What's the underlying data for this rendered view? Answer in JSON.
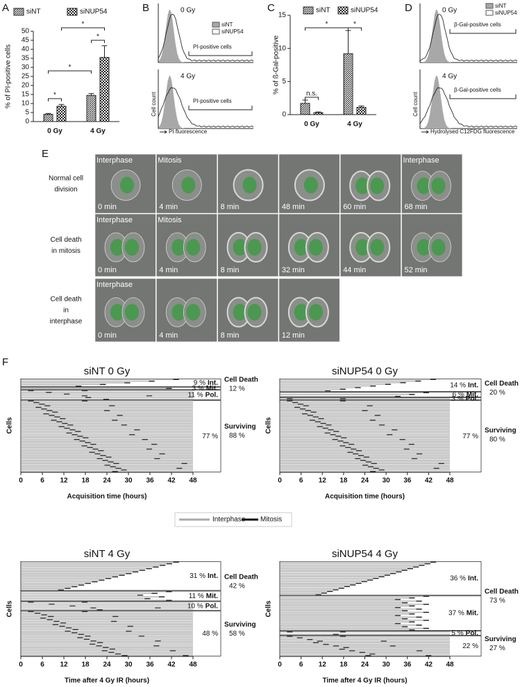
{
  "panel_labels": [
    "A",
    "B",
    "C",
    "D",
    "E",
    "F"
  ],
  "chart_data": [
    {
      "type": "bar",
      "ylabel": "% of PI-positive cells",
      "categories": [
        "0 Gy",
        "4 Gy"
      ],
      "series": [
        {
          "name": "siNT",
          "values": [
            4,
            14.5
          ],
          "errors": [
            0.5,
            1
          ]
        },
        {
          "name": "siNUP54",
          "values": [
            8.5,
            35.5
          ],
          "errors": [
            1,
            6.5
          ]
        }
      ],
      "ylim": [
        0,
        50
      ],
      "yticks": [
        0,
        5,
        10,
        15,
        20,
        25,
        30,
        35,
        40,
        45,
        50
      ],
      "annotations": [
        "*",
        "*",
        "*",
        "*"
      ]
    },
    {
      "type": "bar",
      "ylabel": "% of ß-Gal-positive",
      "categories": [
        "0 Gy",
        "4 Gy"
      ],
      "series": [
        {
          "name": "siNT",
          "values": [
            1.7,
            9.2
          ],
          "errors": [
            0.5,
            3.5
          ]
        },
        {
          "name": "siNUP54",
          "values": [
            0.3,
            1.1
          ],
          "errors": [
            0.1,
            0.2
          ]
        }
      ],
      "ylim": [
        0,
        15
      ],
      "yticks": [
        0,
        5,
        10,
        15
      ],
      "annotations": [
        "n.s.",
        "*",
        "*"
      ]
    }
  ],
  "panel_b": {
    "top_label": "0 Gy",
    "legend": [
      "siNT",
      "siNUP54"
    ],
    "gate_top": "PI-positive cells",
    "bottom_label": "4 Gy",
    "gate_bottom": "PI-positive cells",
    "ylabel": "Cell count",
    "xlabel": "PI fluorescence"
  },
  "panel_d": {
    "top_label": "0 Gy",
    "legend": [
      "siNT",
      "siNUP54"
    ],
    "gate_top": "β-Gal-positive cells",
    "bottom_label": "4 Gy",
    "gate_bottom": "β-Gal-positive cells",
    "ylabel": "Cell count",
    "xlabel": "Hydrolysed C12FDG fluorescence"
  },
  "panel_e": {
    "rows": [
      {
        "label": "Normal cell division",
        "frames": [
          {
            "phase": "Interphase",
            "time": "0 min"
          },
          {
            "phase": "Mitosis",
            "time": "4 min"
          },
          {
            "time": "8 min"
          },
          {
            "time": "48 min"
          },
          {
            "time": "60 min"
          },
          {
            "phase": "Interphase",
            "time": "68 min"
          }
        ]
      },
      {
        "label": "Cell death in mitosis",
        "frames": [
          {
            "phase": "Interphase",
            "time": "0 min"
          },
          {
            "phase": "Mitosis",
            "time": "4 min"
          },
          {
            "time": "8 min"
          },
          {
            "time": "32 min"
          },
          {
            "time": "44 min"
          },
          {
            "time": "52 min"
          }
        ]
      },
      {
        "label": "Cell death in interphase",
        "frames": [
          {
            "phase": "Interphase",
            "time": "0 min"
          },
          {
            "time": "4 min"
          },
          {
            "time": "8 min"
          },
          {
            "time": "12 min"
          }
        ]
      }
    ]
  },
  "panel_f": {
    "legend": [
      "Interphase",
      "Mitosis"
    ],
    "plots": [
      {
        "title": "siNT 0 Gy",
        "xlabel": "Acquisition time (hours)",
        "ylabel": "Cells",
        "xlim": [
          0,
          48
        ],
        "xticks": [
          0,
          6,
          12,
          18,
          24,
          30,
          36,
          42,
          48
        ],
        "cell_death": {
          "label": "Cell Death",
          "value": 12,
          "value_label": "12 %",
          "groups": [
            {
              "name": "Int.",
              "value": 9,
              "value_label": "9 %"
            },
            {
              "name": "Mit.",
              "value": 3,
              "value_label": "3 %"
            }
          ]
        },
        "surviving": {
          "label": "Surviving",
          "value": 88,
          "value_label": "88 %",
          "groups": [
            {
              "name": "Pol.",
              "value": 11,
              "value_label": "11 %"
            },
            {
              "value": 77,
              "value_label": "77 %"
            }
          ]
        }
      },
      {
        "title": "siNUP54 0 Gy",
        "xlabel": "Acquisition time (hours)",
        "ylabel": "Cells",
        "xlim": [
          0,
          48
        ],
        "xticks": [
          0,
          6,
          12,
          18,
          24,
          30,
          36,
          42,
          48
        ],
        "cell_death": {
          "label": "Cell Death",
          "value": 20,
          "value_label": "20 %",
          "groups": [
            {
              "name": "Int.",
              "value": 14,
              "value_label": "14 %"
            },
            {
              "name": "Mit.",
              "value": 6,
              "value_label": "6 %"
            }
          ]
        },
        "surviving": {
          "label": "Surviving",
          "value": 80,
          "value_label": "80 %",
          "groups": [
            {
              "name": "Pol.",
              "value": 3,
              "value_label": "3 %"
            },
            {
              "value": 77,
              "value_label": "77 %"
            }
          ]
        }
      },
      {
        "title": "siNT 4 Gy",
        "xlabel": "Time after 4 Gy IR (hours)",
        "ylabel": "Cells",
        "xlim": [
          0,
          48
        ],
        "xticks": [
          0,
          6,
          12,
          18,
          24,
          30,
          36,
          42,
          48
        ],
        "cell_death": {
          "label": "Cell Death",
          "value": 42,
          "value_label": "42 %",
          "groups": [
            {
              "name": "Int.",
              "value": 31,
              "value_label": "31 %"
            },
            {
              "name": "Mit.",
              "value": 11,
              "value_label": "11 %"
            }
          ]
        },
        "surviving": {
          "label": "Surviving",
          "value": 58,
          "value_label": "58 %",
          "groups": [
            {
              "name": "Pol.",
              "value": 10,
              "value_label": "10 %"
            },
            {
              "value": 48,
              "value_label": "48 %"
            }
          ]
        }
      },
      {
        "title": "siNUP54 4 Gy",
        "xlabel": "Time after 4 Gy IR (hours)",
        "ylabel": "Cells",
        "xlim": [
          0,
          48
        ],
        "xticks": [
          0,
          6,
          12,
          18,
          24,
          30,
          36,
          42,
          48
        ],
        "cell_death": {
          "label": "Cell Death",
          "value": 73,
          "value_label": "73 %",
          "groups": [
            {
              "name": "Int.",
              "value": 36,
              "value_label": "36 %"
            },
            {
              "name": "Mit.",
              "value": 37,
              "value_label": "37 %"
            }
          ]
        },
        "surviving": {
          "label": "Surviving",
          "value": 27,
          "value_label": "27 %",
          "groups": [
            {
              "name": "Pol.",
              "value": 5,
              "value_label": "5 %"
            },
            {
              "value": 22,
              "value_label": "22 %"
            }
          ]
        }
      }
    ]
  }
}
